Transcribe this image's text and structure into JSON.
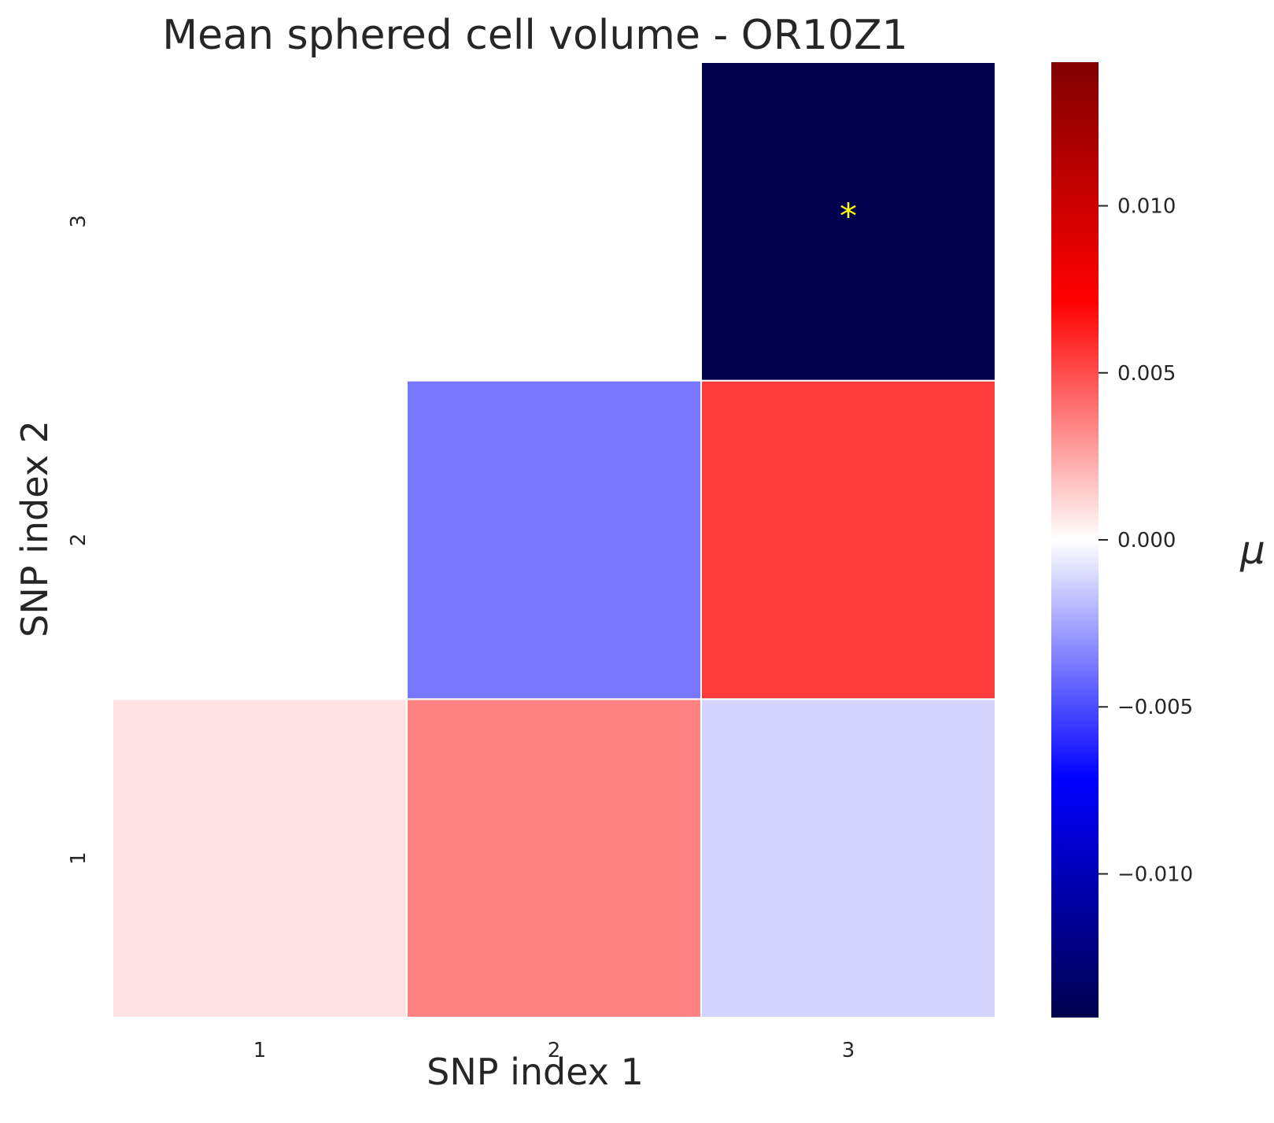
{
  "chart_data": {
    "type": "heatmap",
    "title": "Mean sphered cell volume - OR10Z1",
    "xlabel": "SNP index 1",
    "ylabel": "SNP index 2",
    "x_categories": [
      "1",
      "2",
      "3"
    ],
    "y_categories": [
      "1",
      "2",
      "3"
    ],
    "cells": [
      {
        "x": "1",
        "y": "1",
        "value": 0.0008
      },
      {
        "x": "2",
        "y": "1",
        "value": 0.0035
      },
      {
        "x": "3",
        "y": "1",
        "value": -0.0012
      },
      {
        "x": "2",
        "y": "2",
        "value": -0.0038
      },
      {
        "x": "3",
        "y": "2",
        "value": 0.0055
      },
      {
        "x": "3",
        "y": "3",
        "value": -0.0143,
        "annotation": "*"
      }
    ],
    "colormap": "seismic",
    "vmin": -0.0143,
    "vmax": 0.0143,
    "colorbar": {
      "label": "μ",
      "ticks": [
        0.01,
        0.005,
        0.0,
        -0.005,
        -0.01
      ],
      "tick_labels": [
        "0.010",
        "0.005",
        "0.000",
        "−0.005",
        "−0.010"
      ]
    },
    "annotation_color": "#ffff00",
    "grid": false,
    "legend": "colorbar-right"
  }
}
